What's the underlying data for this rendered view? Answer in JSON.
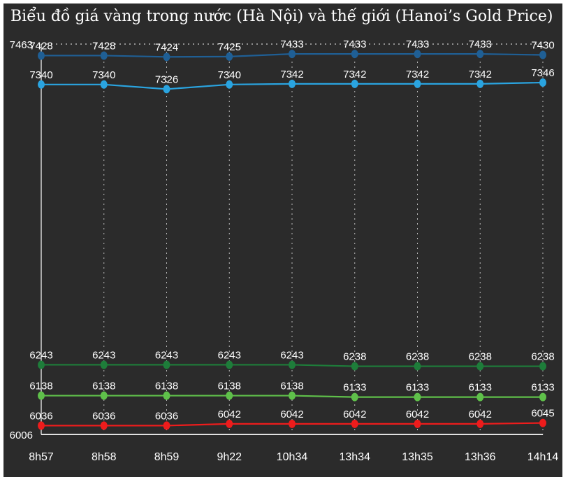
{
  "chart_data": {
    "type": "line",
    "title": "Biểu đồ giá vàng trong nước (Hà Nội) và thế giới (Hanoi’s Gold Price)",
    "categories": [
      "8h57",
      "8h58",
      "8h59",
      "9h22",
      "10h34",
      "13h34",
      "13h35",
      "13h36",
      "14h14"
    ],
    "y_ticks": [
      7463,
      6006
    ],
    "ylim": [
      6006,
      7463
    ],
    "grid": true,
    "series": [
      {
        "values": [
          7428,
          7428,
          7424,
          7425,
          7433,
          7433,
          7433,
          7433,
          7430
        ],
        "color": "#1f5f95"
      },
      {
        "values": [
          7340,
          7340,
          7326,
          7340,
          7342,
          7342,
          7342,
          7342,
          7346
        ],
        "color": "#2aa4e0"
      },
      {
        "values": [
          6243,
          6243,
          6243,
          6243,
          6243,
          6238,
          6238,
          6238,
          6238
        ],
        "color": "#1e7d3a"
      },
      {
        "values": [
          6138,
          6138,
          6138,
          6138,
          6138,
          6133,
          6133,
          6133,
          6133
        ],
        "color": "#5fc04a"
      },
      {
        "values": [
          6036,
          6036,
          6036,
          6042,
          6042,
          6042,
          6042,
          6042,
          6045
        ],
        "color": "#ee1c1c"
      }
    ]
  }
}
